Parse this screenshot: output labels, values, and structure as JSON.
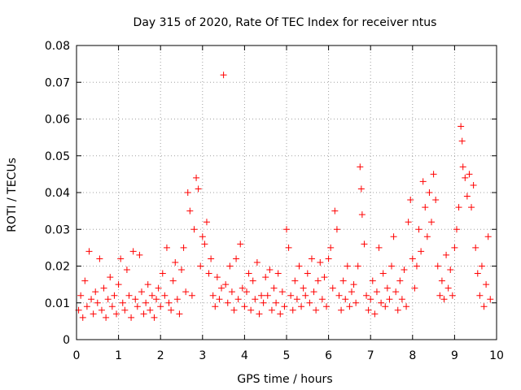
{
  "chart_data": {
    "type": "scatter",
    "title": "Day 315 of 2020, Rate Of TEC Index for receiver ntus",
    "xlabel": "GPS time / hours",
    "ylabel": "ROTI / TECUs",
    "xlim": [
      0,
      10
    ],
    "ylim": [
      0,
      0.08
    ],
    "x_ticks": [
      0,
      1,
      2,
      3,
      4,
      5,
      6,
      7,
      8,
      9,
      10
    ],
    "x_tick_labels": [
      "0",
      "1",
      "2",
      "3",
      "4",
      "5",
      "6",
      "7",
      "8",
      "9",
      "10"
    ],
    "y_ticks": [
      0,
      0.01,
      0.02,
      0.03,
      0.04,
      0.05,
      0.06,
      0.07,
      0.08
    ],
    "y_tick_labels": [
      "0",
      "0.01",
      "0.02",
      "0.03",
      "0.04",
      "0.05",
      "0.06",
      "0.07",
      "0.08"
    ],
    "grid": true,
    "marker": "+",
    "color": "#ff0000",
    "series": [
      {
        "name": "ROTI",
        "points": [
          [
            0.05,
            0.008
          ],
          [
            0.1,
            0.012
          ],
          [
            0.15,
            0.006
          ],
          [
            0.2,
            0.016
          ],
          [
            0.25,
            0.009
          ],
          [
            0.3,
            0.024
          ],
          [
            0.35,
            0.011
          ],
          [
            0.4,
            0.007
          ],
          [
            0.45,
            0.013
          ],
          [
            0.5,
            0.01
          ],
          [
            0.55,
            0.022
          ],
          [
            0.6,
            0.008
          ],
          [
            0.65,
            0.014
          ],
          [
            0.7,
            0.006
          ],
          [
            0.75,
            0.011
          ],
          [
            0.8,
            0.017
          ],
          [
            0.85,
            0.009
          ],
          [
            0.9,
            0.012
          ],
          [
            0.95,
            0.007
          ],
          [
            1.0,
            0.015
          ],
          [
            1.05,
            0.022
          ],
          [
            1.1,
            0.01
          ],
          [
            1.15,
            0.008
          ],
          [
            1.2,
            0.019
          ],
          [
            1.25,
            0.012
          ],
          [
            1.3,
            0.006
          ],
          [
            1.35,
            0.024
          ],
          [
            1.4,
            0.011
          ],
          [
            1.45,
            0.009
          ],
          [
            1.5,
            0.023
          ],
          [
            1.55,
            0.013
          ],
          [
            1.6,
            0.007
          ],
          [
            1.65,
            0.01
          ],
          [
            1.7,
            0.015
          ],
          [
            1.75,
            0.008
          ],
          [
            1.8,
            0.012
          ],
          [
            1.85,
            0.006
          ],
          [
            1.9,
            0.011
          ],
          [
            1.95,
            0.014
          ],
          [
            2.0,
            0.009
          ],
          [
            2.05,
            0.018
          ],
          [
            2.1,
            0.012
          ],
          [
            2.15,
            0.025
          ],
          [
            2.2,
            0.01
          ],
          [
            2.25,
            0.008
          ],
          [
            2.3,
            0.016
          ],
          [
            2.35,
            0.021
          ],
          [
            2.4,
            0.011
          ],
          [
            2.45,
            0.007
          ],
          [
            2.5,
            0.019
          ],
          [
            2.55,
            0.025
          ],
          [
            2.6,
            0.013
          ],
          [
            2.65,
            0.04
          ],
          [
            2.7,
            0.035
          ],
          [
            2.75,
            0.012
          ],
          [
            2.8,
            0.03
          ],
          [
            2.85,
            0.044
          ],
          [
            2.9,
            0.041
          ],
          [
            2.95,
            0.02
          ],
          [
            3.0,
            0.028
          ],
          [
            3.05,
            0.026
          ],
          [
            3.1,
            0.032
          ],
          [
            3.15,
            0.018
          ],
          [
            3.2,
            0.022
          ],
          [
            3.25,
            0.012
          ],
          [
            3.3,
            0.009
          ],
          [
            3.35,
            0.017
          ],
          [
            3.4,
            0.011
          ],
          [
            3.45,
            0.014
          ],
          [
            3.5,
            0.072
          ],
          [
            3.55,
            0.015
          ],
          [
            3.6,
            0.01
          ],
          [
            3.65,
            0.02
          ],
          [
            3.7,
            0.013
          ],
          [
            3.75,
            0.008
          ],
          [
            3.8,
            0.022
          ],
          [
            3.85,
            0.011
          ],
          [
            3.9,
            0.026
          ],
          [
            3.95,
            0.014
          ],
          [
            4.0,
            0.009
          ],
          [
            4.05,
            0.013
          ],
          [
            4.1,
            0.018
          ],
          [
            4.15,
            0.008
          ],
          [
            4.2,
            0.016
          ],
          [
            4.25,
            0.011
          ],
          [
            4.3,
            0.021
          ],
          [
            4.35,
            0.007
          ],
          [
            4.4,
            0.012
          ],
          [
            4.45,
            0.01
          ],
          [
            4.5,
            0.017
          ],
          [
            4.55,
            0.012
          ],
          [
            4.6,
            0.019
          ],
          [
            4.65,
            0.008
          ],
          [
            4.7,
            0.014
          ],
          [
            4.75,
            0.01
          ],
          [
            4.8,
            0.018
          ],
          [
            4.85,
            0.007
          ],
          [
            4.9,
            0.013
          ],
          [
            4.95,
            0.009
          ],
          [
            5.0,
            0.03
          ],
          [
            5.05,
            0.025
          ],
          [
            5.1,
            0.012
          ],
          [
            5.15,
            0.008
          ],
          [
            5.2,
            0.016
          ],
          [
            5.25,
            0.011
          ],
          [
            5.3,
            0.02
          ],
          [
            5.35,
            0.009
          ],
          [
            5.4,
            0.014
          ],
          [
            5.45,
            0.012
          ],
          [
            5.5,
            0.018
          ],
          [
            5.55,
            0.01
          ],
          [
            5.6,
            0.022
          ],
          [
            5.65,
            0.013
          ],
          [
            5.7,
            0.008
          ],
          [
            5.75,
            0.016
          ],
          [
            5.8,
            0.021
          ],
          [
            5.85,
            0.011
          ],
          [
            5.9,
            0.017
          ],
          [
            5.95,
            0.009
          ],
          [
            6.0,
            0.022
          ],
          [
            6.05,
            0.025
          ],
          [
            6.1,
            0.014
          ],
          [
            6.15,
            0.035
          ],
          [
            6.2,
            0.03
          ],
          [
            6.25,
            0.012
          ],
          [
            6.3,
            0.008
          ],
          [
            6.35,
            0.016
          ],
          [
            6.4,
            0.011
          ],
          [
            6.45,
            0.02
          ],
          [
            6.5,
            0.009
          ],
          [
            6.55,
            0.013
          ],
          [
            6.6,
            0.015
          ],
          [
            6.65,
            0.01
          ],
          [
            6.7,
            0.02
          ],
          [
            6.75,
            0.047
          ],
          [
            6.78,
            0.041
          ],
          [
            6.8,
            0.034
          ],
          [
            6.85,
            0.026
          ],
          [
            6.9,
            0.012
          ],
          [
            6.95,
            0.008
          ],
          [
            7.0,
            0.011
          ],
          [
            7.05,
            0.016
          ],
          [
            7.1,
            0.007
          ],
          [
            7.15,
            0.013
          ],
          [
            7.2,
            0.025
          ],
          [
            7.25,
            0.01
          ],
          [
            7.3,
            0.018
          ],
          [
            7.35,
            0.009
          ],
          [
            7.4,
            0.014
          ],
          [
            7.45,
            0.011
          ],
          [
            7.5,
            0.02
          ],
          [
            7.55,
            0.028
          ],
          [
            7.6,
            0.013
          ],
          [
            7.65,
            0.008
          ],
          [
            7.7,
            0.016
          ],
          [
            7.75,
            0.011
          ],
          [
            7.8,
            0.019
          ],
          [
            7.85,
            0.009
          ],
          [
            7.9,
            0.032
          ],
          [
            7.95,
            0.038
          ],
          [
            8.0,
            0.022
          ],
          [
            8.05,
            0.014
          ],
          [
            8.1,
            0.02
          ],
          [
            8.15,
            0.03
          ],
          [
            8.2,
            0.024
          ],
          [
            8.25,
            0.043
          ],
          [
            8.3,
            0.036
          ],
          [
            8.35,
            0.028
          ],
          [
            8.4,
            0.04
          ],
          [
            8.45,
            0.032
          ],
          [
            8.5,
            0.045
          ],
          [
            8.55,
            0.038
          ],
          [
            8.6,
            0.02
          ],
          [
            8.65,
            0.012
          ],
          [
            8.7,
            0.016
          ],
          [
            8.75,
            0.011
          ],
          [
            8.8,
            0.023
          ],
          [
            8.85,
            0.014
          ],
          [
            8.9,
            0.019
          ],
          [
            8.95,
            0.012
          ],
          [
            9.0,
            0.025
          ],
          [
            9.05,
            0.03
          ],
          [
            9.1,
            0.036
          ],
          [
            9.15,
            0.058
          ],
          [
            9.18,
            0.054
          ],
          [
            9.2,
            0.047
          ],
          [
            9.25,
            0.044
          ],
          [
            9.3,
            0.039
          ],
          [
            9.35,
            0.045
          ],
          [
            9.4,
            0.036
          ],
          [
            9.45,
            0.042
          ],
          [
            9.5,
            0.025
          ],
          [
            9.55,
            0.018
          ],
          [
            9.6,
            0.012
          ],
          [
            9.65,
            0.02
          ],
          [
            9.7,
            0.009
          ],
          [
            9.75,
            0.015
          ],
          [
            9.8,
            0.028
          ],
          [
            9.85,
            0.011
          ]
        ]
      }
    ]
  }
}
